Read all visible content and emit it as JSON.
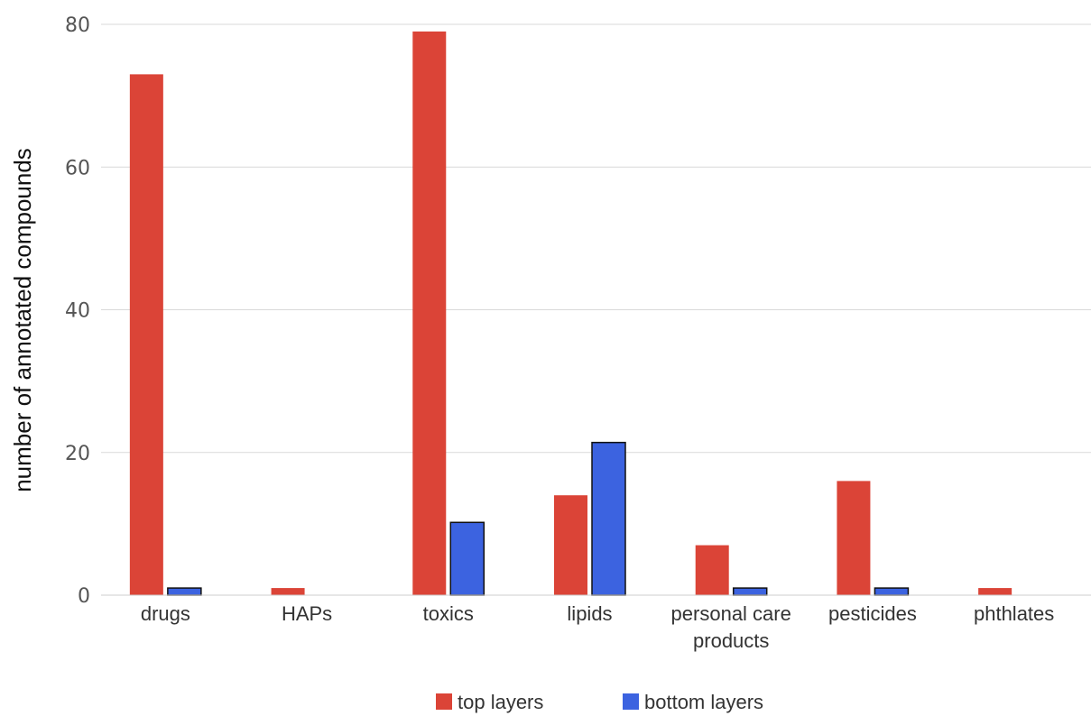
{
  "chart_data": {
    "type": "bar",
    "categories": [
      "drugs",
      "HAPs",
      "toxics",
      "lipids",
      "personal care products",
      "pesticides",
      "phthlates"
    ],
    "category_lines": [
      [
        "drugs"
      ],
      [
        "HAPs"
      ],
      [
        "toxics"
      ],
      [
        "lipids"
      ],
      [
        "personal care",
        "products"
      ],
      [
        "pesticides"
      ],
      [
        "phthlates"
      ]
    ],
    "series": [
      {
        "name": "top layers",
        "color": "#db4437",
        "values": [
          73,
          1,
          79,
          14,
          7,
          16,
          1
        ]
      },
      {
        "name": "bottom layers",
        "color": "#3c63e0",
        "values": [
          1,
          0,
          10.2,
          21.4,
          1,
          1,
          0
        ]
      }
    ],
    "ylabel": "number of annotated compounds",
    "xlabel": "",
    "title": "",
    "ylim": [
      0,
      80
    ],
    "yticks": [
      0,
      20,
      40,
      60,
      80
    ],
    "grid": true,
    "legend_position": "bottom-center"
  }
}
